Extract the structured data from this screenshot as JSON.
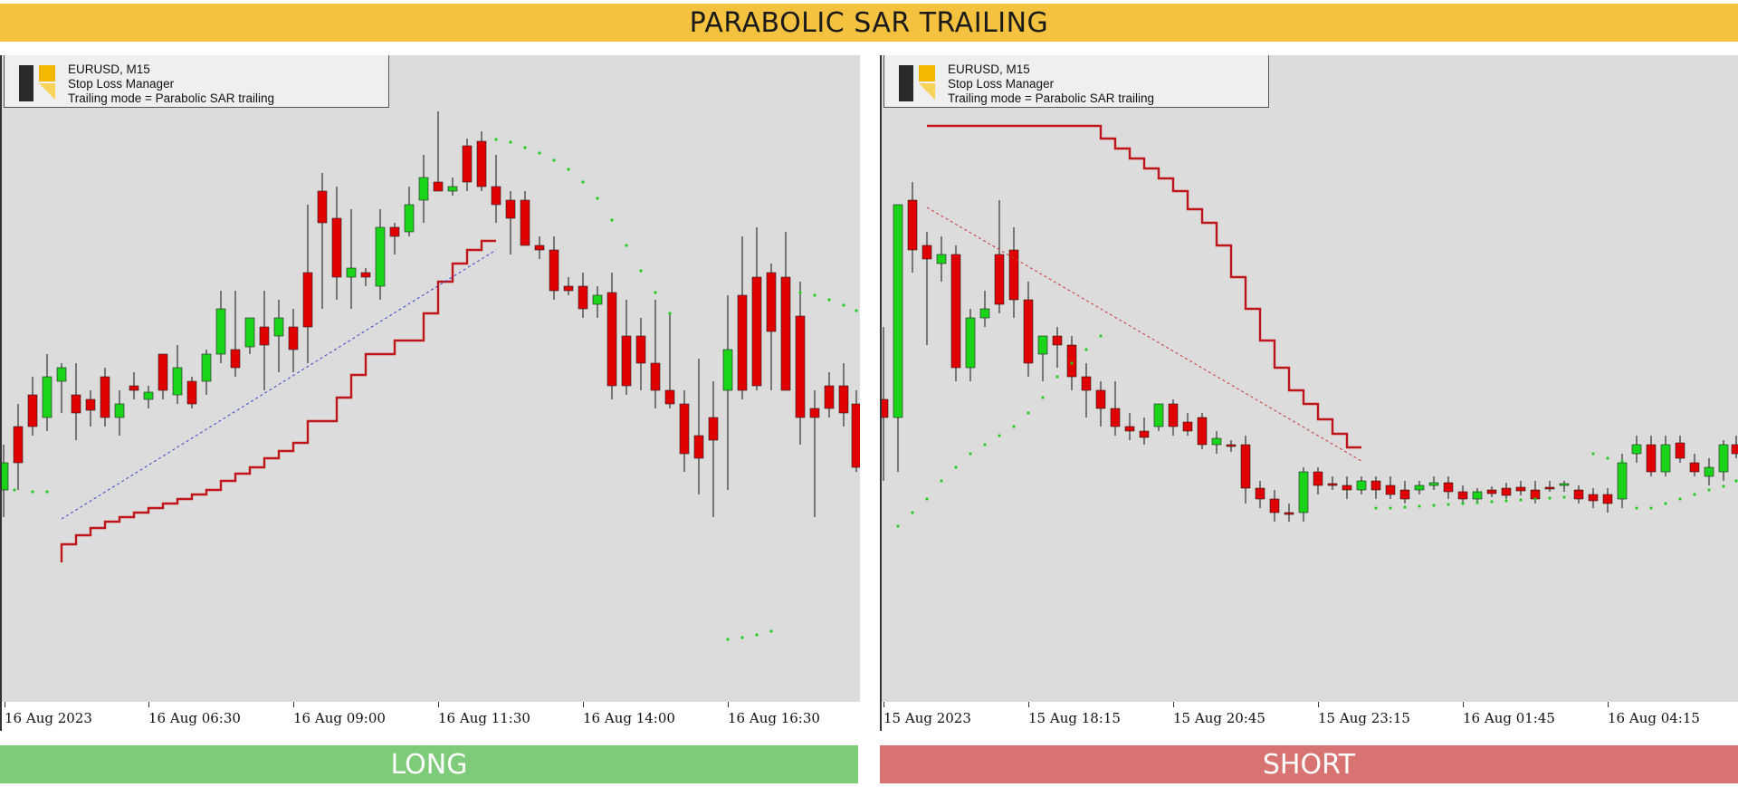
{
  "title": "PARABOLIC SAR TRAILING",
  "colors": {
    "header": "#f5c240",
    "long": "#7ecb7a",
    "short": "#d77370",
    "bull": "#19d419",
    "bear": "#e00000",
    "stop_line": "#c0141a",
    "sar_dots": "#22cc22",
    "chart_bg": "#dcdcdc"
  },
  "panels": [
    {
      "id": "long",
      "footer": "LONG",
      "info": {
        "symbol": "EURUSD, M15",
        "tool": "Stop Loss Manager",
        "mode": "Trailing mode = Parabolic SAR trailing"
      },
      "x_labels": [
        "16 Aug 2023",
        "16 Aug 06:30",
        "16 Aug 09:00",
        "16 Aug 11:30",
        "16 Aug 14:00",
        "16 Aug 16:30"
      ]
    },
    {
      "id": "short",
      "footer": "SHORT",
      "info": {
        "symbol": "EURUSD, M15",
        "tool": "Stop Loss Manager",
        "mode": "Trailing mode = Parabolic SAR trailing"
      },
      "x_labels": [
        "15 Aug 2023",
        "15 Aug 18:15",
        "15 Aug 20:45",
        "15 Aug 23:15",
        "16 Aug 01:45",
        "16 Aug 04:15"
      ]
    }
  ]
}
